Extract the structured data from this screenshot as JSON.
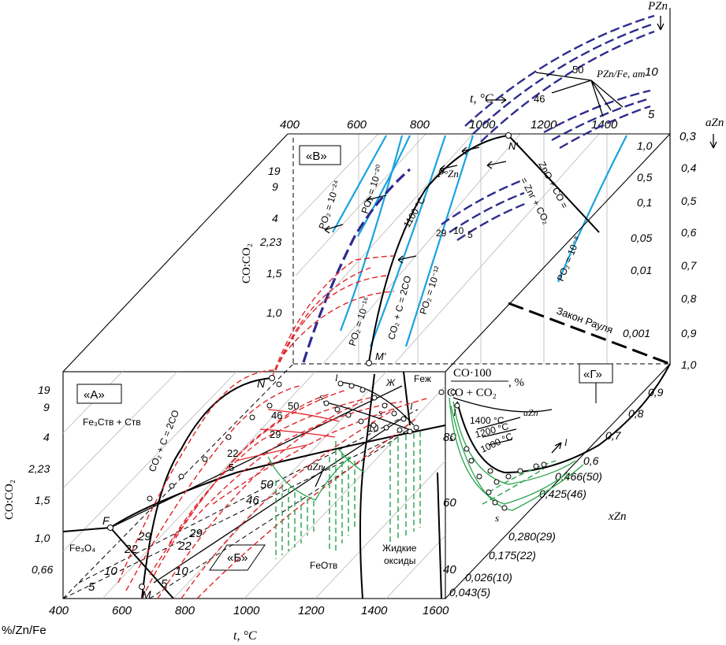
{
  "labels": {
    "box_a": "«A»",
    "box_b": "«Б»",
    "box_v": "«В»",
    "box_g": "«Г»",
    "fe3c": "Fe₃Cтв + Cтв",
    "fe3o4": "Fe₃O₄",
    "feo": "FeOтв",
    "liquid_oxides_1": "Жидкие",
    "liquid_oxides_2": "оксиды",
    "fe_l": "Feж",
    "zh": "Ж",
    "reaction_boudouard_front": "CO₂ + C = 2CO",
    "reaction_boudouard_back": "CO₂ + C = 2CO",
    "reaction_zno": "ZnO + CO =",
    "reaction_zno_2": "= Znг + CO₂",
    "raoult": "Закон Рауля",
    "t1100": "~1100 °C",
    "p_zn_deg": "P°Zn",
    "p_zn_fe": "PZn/Fe, ат",
    "a_zn_front": "aZn",
    "a_zn_side": "aZn",
    "t_side_1400": "1400 °C",
    "t_side_1200": "1200 °C",
    "t_side_1000": "1000 °C",
    "po2_24": "PO₂ = 10⁻²⁴",
    "po2_20": "PO₂ = 10⁻²⁰",
    "po2_16": "PO₂ = 10⁻¹⁶",
    "po2_12": "PO₂ = 10⁻¹²",
    "po2_8": "PO₂ = 10⁻⁸",
    "pt_F": "F",
    "pt_M": "M",
    "pt_N": "N",
    "pt_Mp": "M'",
    "pt_Np": "N'",
    "pt_l": "l",
    "pt_s": "s"
  },
  "axes": {
    "bottom_x_title": "t, °C",
    "bottom_x_ticks": [
      "400",
      "600",
      "800",
      "1000",
      "1200",
      "1400",
      "1600"
    ],
    "bottom_left_label": "%/Zn/Fe",
    "left_y_title": "CO:CO₂",
    "left_y_ticks": [
      "19",
      "9",
      "4",
      "2,23",
      "1,5",
      "1,0",
      "0,66"
    ],
    "back_x_title": "t, °C",
    "back_x_ticks": [
      "400",
      "600",
      "800",
      "1000",
      "1200",
      "1400"
    ],
    "back_y_title": "CO:CO₂",
    "back_y_ticks": [
      "19",
      "9",
      "4",
      "2,23",
      "1,5",
      "1,0"
    ],
    "pzn_title": "PZn",
    "pzn_ticks": [
      "10",
      "5"
    ],
    "azn_title": "aZn",
    "azn_ticks": [
      "1,0",
      "0,5",
      "0,1",
      "0,05",
      "0,01",
      "0,001"
    ],
    "azn_top": "0,3",
    "x_right_ticks": [
      "0,4",
      "0,5",
      "0,6",
      "0,7",
      "0,8",
      "0,9",
      "1,0"
    ],
    "x_diag_title": "xZn",
    "x_diag_ticks": [
      "0,9",
      "0,8",
      "0,7",
      "0,6",
      "0,466(50)",
      "0,425(46)",
      "0,280(29)",
      "0,175(22)",
      "0,026(10)",
      "0,043(5)"
    ],
    "pct_title_num": "CO·100",
    "pct_title_den": "CO + CO₂",
    "pct_unit": ", %",
    "pct_ticks": [
      "80",
      "60",
      "40"
    ]
  },
  "iso_zn_labels": {
    "front_top": [
      "50",
      "46",
      "29",
      "22",
      "5",
      "10"
    ],
    "front_diag": [
      "50",
      "46",
      "29",
      "22",
      "10",
      "5"
    ],
    "dashed_left": [
      "29",
      "22",
      "10",
      "5"
    ],
    "back": [
      "29",
      "10",
      "5"
    ],
    "pzn": [
      "50",
      "46"
    ]
  }
}
